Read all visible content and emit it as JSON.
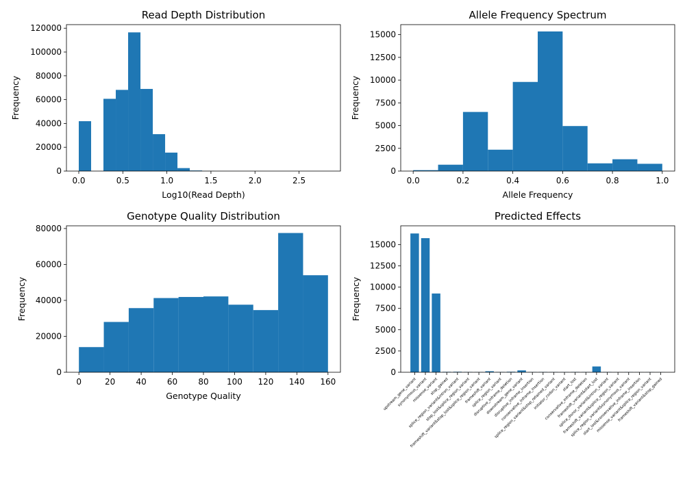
{
  "colors": {
    "bar": "#1f77b4",
    "axis": "#000000",
    "background": "#ffffff"
  },
  "chart_data": [
    {
      "id": "readdepth",
      "type": "bar",
      "title": "Read Depth Distribution",
      "xlabel": "Log10(Read Depth)",
      "ylabel": "Frequency",
      "xlim": [
        -0.14,
        2.97
      ],
      "ylim": [
        0,
        123000
      ],
      "xticks": [
        "0.0",
        "0.5",
        "1.0",
        "1.5",
        "2.0",
        "2.5"
      ],
      "xtick_values": [
        0,
        0.5,
        1,
        1.5,
        2,
        2.5
      ],
      "yticks": [
        "0",
        "20000",
        "40000",
        "60000",
        "80000",
        "100000",
        "120000"
      ],
      "ytick_values": [
        0,
        20000,
        40000,
        60000,
        80000,
        100000,
        120000
      ],
      "bins": [
        {
          "x0": 0.0,
          "x1": 0.14,
          "value": 41900
        },
        {
          "x0": 0.14,
          "x1": 0.28,
          "value": 0
        },
        {
          "x0": 0.28,
          "x1": 0.42,
          "value": 60700
        },
        {
          "x0": 0.42,
          "x1": 0.56,
          "value": 68200
        },
        {
          "x0": 0.56,
          "x1": 0.7,
          "value": 116500
        },
        {
          "x0": 0.7,
          "x1": 0.84,
          "value": 69000
        },
        {
          "x0": 0.84,
          "x1": 0.98,
          "value": 31000
        },
        {
          "x0": 0.98,
          "x1": 1.12,
          "value": 15500
        },
        {
          "x0": 1.12,
          "x1": 1.26,
          "value": 2500
        },
        {
          "x0": 1.26,
          "x1": 1.4,
          "value": 500
        },
        {
          "x0": 1.4,
          "x1": 1.54,
          "value": 100
        },
        {
          "x0": 1.54,
          "x1": 1.68,
          "value": 30
        },
        {
          "x0": 1.68,
          "x1": 1.82,
          "value": 10
        },
        {
          "x0": 1.82,
          "x1": 1.96,
          "value": 5
        },
        {
          "x0": 1.96,
          "x1": 2.1,
          "value": 3
        },
        {
          "x0": 2.1,
          "x1": 2.24,
          "value": 2
        },
        {
          "x0": 2.24,
          "x1": 2.38,
          "value": 1
        },
        {
          "x0": 2.38,
          "x1": 2.52,
          "value": 1
        },
        {
          "x0": 2.52,
          "x1": 2.66,
          "value": 1
        },
        {
          "x0": 2.66,
          "x1": 2.83,
          "value": 1
        }
      ]
    },
    {
      "id": "allelefreq",
      "type": "bar",
      "title": "Allele Frequency Spectrum",
      "xlabel": "Allele Frequency",
      "ylabel": "Frequency",
      "xlim": [
        -0.05,
        1.05
      ],
      "ylim": [
        0,
        16100
      ],
      "xticks": [
        "0.0",
        "0.2",
        "0.4",
        "0.6",
        "0.8",
        "1.0"
      ],
      "xtick_values": [
        0,
        0.2,
        0.4,
        0.6,
        0.8,
        1.0
      ],
      "yticks": [
        "0",
        "2500",
        "5000",
        "7500",
        "10000",
        "12500",
        "15000"
      ],
      "ytick_values": [
        0,
        2500,
        5000,
        7500,
        10000,
        12500,
        15000
      ],
      "bins": [
        {
          "x0": 0.0,
          "x1": 0.1,
          "value": 100
        },
        {
          "x0": 0.1,
          "x1": 0.2,
          "value": 700
        },
        {
          "x0": 0.2,
          "x1": 0.3,
          "value": 6500
        },
        {
          "x0": 0.3,
          "x1": 0.4,
          "value": 2350
        },
        {
          "x0": 0.4,
          "x1": 0.5,
          "value": 9800
        },
        {
          "x0": 0.5,
          "x1": 0.6,
          "value": 15350
        },
        {
          "x0": 0.6,
          "x1": 0.7,
          "value": 4950
        },
        {
          "x0": 0.7,
          "x1": 0.8,
          "value": 850
        },
        {
          "x0": 0.8,
          "x1": 0.9,
          "value": 1300
        },
        {
          "x0": 0.9,
          "x1": 1.0,
          "value": 800
        }
      ]
    },
    {
      "id": "genoqual",
      "type": "bar",
      "title": "Genotype Quality Distribution",
      "xlabel": "Genotype Quality",
      "ylabel": "Frequency",
      "xlim": [
        -8,
        168
      ],
      "ylim": [
        0,
        81500
      ],
      "xticks": [
        "0",
        "20",
        "40",
        "60",
        "80",
        "100",
        "120",
        "140",
        "160"
      ],
      "xtick_values": [
        0,
        20,
        40,
        60,
        80,
        100,
        120,
        140,
        160
      ],
      "yticks": [
        "0",
        "20000",
        "40000",
        "60000",
        "80000"
      ],
      "ytick_values": [
        0,
        20000,
        40000,
        60000,
        80000
      ],
      "bins": [
        {
          "x0": 0,
          "x1": 16,
          "value": 14000
        },
        {
          "x0": 16,
          "x1": 32,
          "value": 28000
        },
        {
          "x0": 32,
          "x1": 48,
          "value": 35700
        },
        {
          "x0": 48,
          "x1": 64,
          "value": 41300
        },
        {
          "x0": 64,
          "x1": 80,
          "value": 41900
        },
        {
          "x0": 80,
          "x1": 96,
          "value": 42200
        },
        {
          "x0": 96,
          "x1": 112,
          "value": 37600
        },
        {
          "x0": 112,
          "x1": 128,
          "value": 34600
        },
        {
          "x0": 128,
          "x1": 144,
          "value": 77500
        },
        {
          "x0": 144,
          "x1": 160,
          "value": 54000
        }
      ]
    },
    {
      "id": "effects",
      "type": "bar",
      "title": "Predicted Effects",
      "xlabel": "",
      "ylabel": "Frequency",
      "ylim": [
        0,
        17200
      ],
      "yticks": [
        "0",
        "2500",
        "5000",
        "7500",
        "10000",
        "12500",
        "15000"
      ],
      "ytick_values": [
        0,
        2500,
        5000,
        7500,
        10000,
        12500,
        15000
      ],
      "categories": [
        "upstream_gene_variant",
        "synonymous_variant",
        "missense_variant",
        "stop_gained",
        "splice_region_variant&intron_variant",
        "stop_lost&splice_region_variant",
        "frameshift_variant&stop_lost&splice_region_variant",
        "frameshift_variant",
        "splice_region_variant",
        "disruptive_inframe_deletion",
        "downstream_gene_variant",
        "disruptive_inframe_insertion",
        "conservative_inframe_insertion",
        "splice_region_variant&stop_retained_variant",
        "initiator_codon_variant",
        "start_lost",
        "conservative_inframe_deletion",
        "frameshift_variant&start_lost",
        "splice_donor_variant&intron_variant",
        "frameshift_variant&splice_region_variant",
        "splice_region_variant&synonymous_variant",
        "start_lost&conservative_inframe_insertion",
        "missense_variant&splice_region_variant",
        "frameshift_variant&stop_gained"
      ],
      "values": [
        16300,
        15750,
        9250,
        50,
        60,
        40,
        30,
        120,
        40,
        60,
        220,
        30,
        40,
        30,
        20,
        40,
        30,
        680,
        40,
        10,
        20,
        10,
        15,
        10
      ]
    }
  ]
}
